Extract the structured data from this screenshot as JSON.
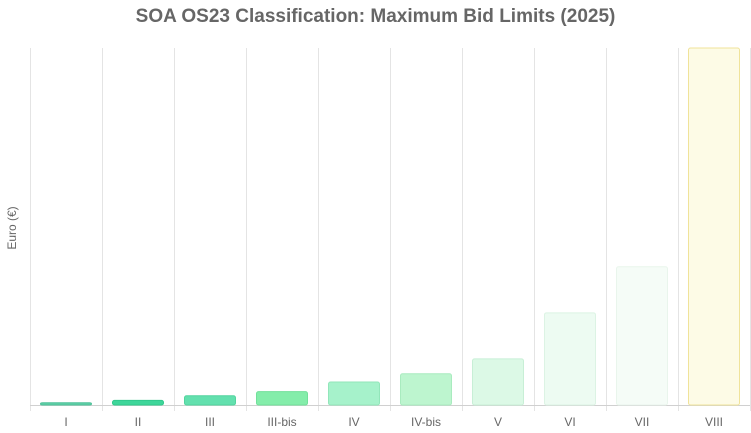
{
  "chart_data": {
    "type": "bar",
    "title": "SOA OS23 Classification: Maximum Bid Limits (2025)",
    "xlabel": "",
    "ylabel": "Euro (€)",
    "categories": [
      "I",
      "II",
      "III",
      "III-bis",
      "IV",
      "IV-bis",
      "V",
      "VI",
      "VII",
      "VIII"
    ],
    "values": [
      258000,
      516000,
      1033000,
      1500000,
      2582000,
      3500000,
      5165000,
      10329000,
      15494000,
      40000000
    ],
    "ylim": [
      0,
      40000000
    ],
    "grid": "vertical",
    "legend": "none",
    "colors": [
      "#5ecfa6",
      "#3ed69a",
      "#63e0ae",
      "#84edaa",
      "#a6f2cb",
      "#bdf5cf",
      "#dcf9e6",
      "#edfbf2",
      "#f5fcf7",
      "#fdfbe6"
    ],
    "borders": [
      "#4fc19a",
      "#31c98c",
      "#52d49e",
      "#72e09a",
      "#92e6ba",
      "#a9ebbf",
      "#c8efd6",
      "#dcf3e4",
      "#e9f5ec",
      "#f0e39a"
    ]
  }
}
